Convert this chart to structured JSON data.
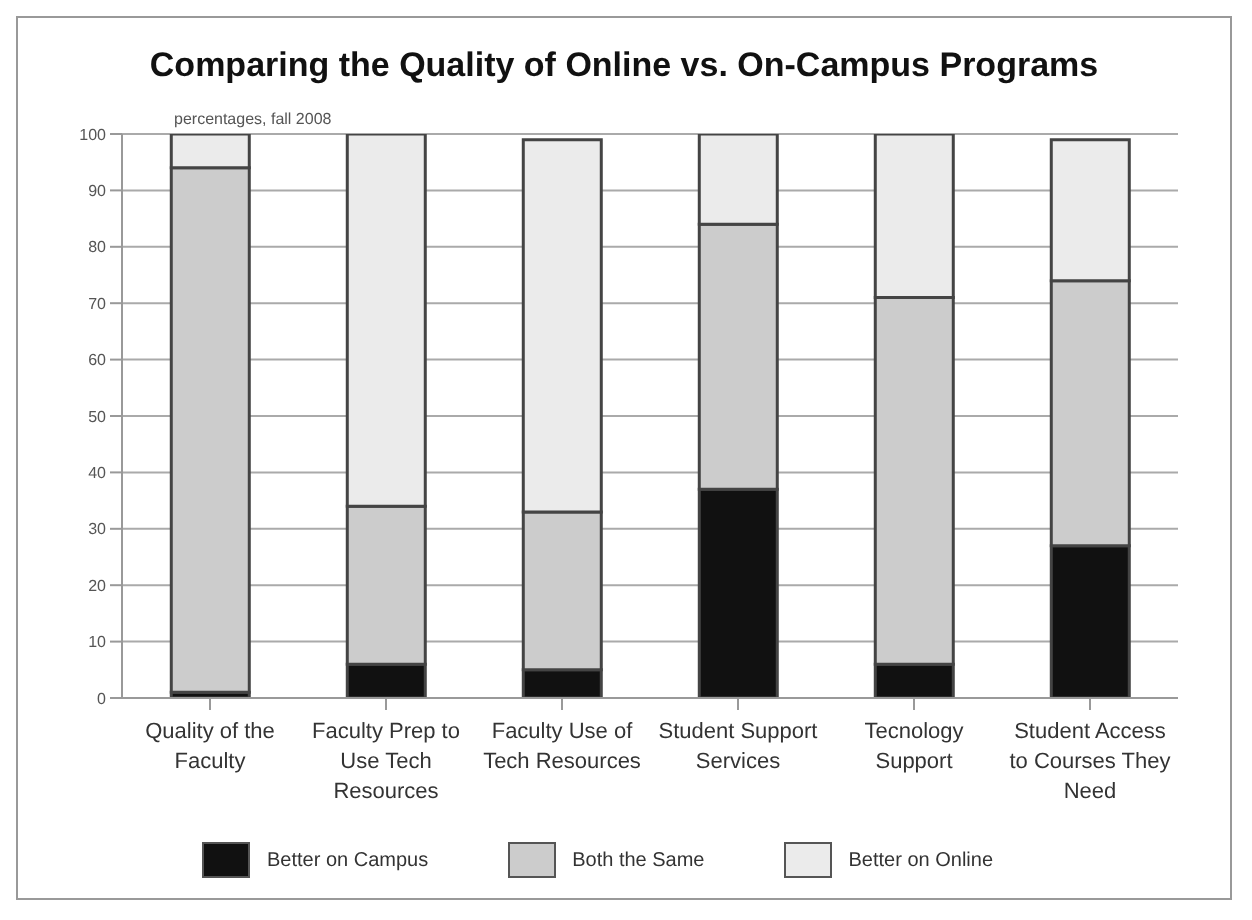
{
  "chart_data": {
    "type": "bar",
    "title": "Comparing the Quality of Online vs. On-Campus Programs",
    "subtitle": "percentages, fall 2008",
    "categories": [
      "Quality of the Faculty",
      "Faculty Prep to Use Tech Resources",
      "Faculty Use of Tech Resources",
      "Student Support Services",
      "Tecnology Support",
      "Student Access to Courses They Need"
    ],
    "stacked": true,
    "series": [
      {
        "name": "Better on Campus",
        "color": "#111111",
        "values": [
          1,
          6,
          5,
          37,
          6,
          27
        ]
      },
      {
        "name": "Both the Same",
        "color": "#cccccc",
        "values": [
          93,
          28,
          28,
          47,
          65,
          47
        ]
      },
      {
        "name": "Better on Online",
        "color": "#ebebeb",
        "values": [
          6,
          66,
          66,
          16,
          29,
          25
        ]
      }
    ],
    "ylim": [
      0,
      100
    ],
    "yticks": [
      0,
      10,
      20,
      30,
      40,
      50,
      60,
      70,
      80,
      90,
      100
    ],
    "grid": "y",
    "legend": "bottom"
  }
}
